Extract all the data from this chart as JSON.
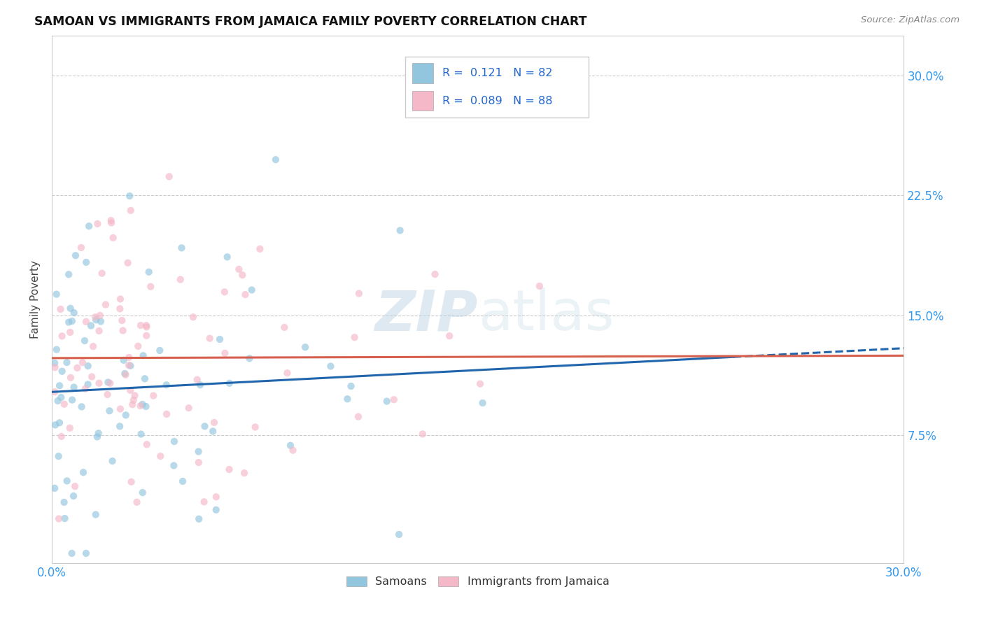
{
  "title": "SAMOAN VS IMMIGRANTS FROM JAMAICA FAMILY POVERTY CORRELATION CHART",
  "source": "Source: ZipAtlas.com",
  "ylabel": "Family Poverty",
  "ytick_labels": [
    "7.5%",
    "15.0%",
    "22.5%",
    "30.0%"
  ],
  "ytick_values": [
    0.075,
    0.15,
    0.225,
    0.3
  ],
  "xlim": [
    0.0,
    0.3
  ],
  "ylim": [
    -0.005,
    0.325
  ],
  "r_samoan": 0.121,
  "n_samoan": 82,
  "r_jamaica": 0.089,
  "n_jamaica": 88,
  "color_samoan": "#92c5de",
  "color_jamaica": "#f4b8c8",
  "color_samoan_line": "#2166ac",
  "color_jamaica_line": "#d6604d",
  "marker_size": 55,
  "marker_alpha": 0.65
}
